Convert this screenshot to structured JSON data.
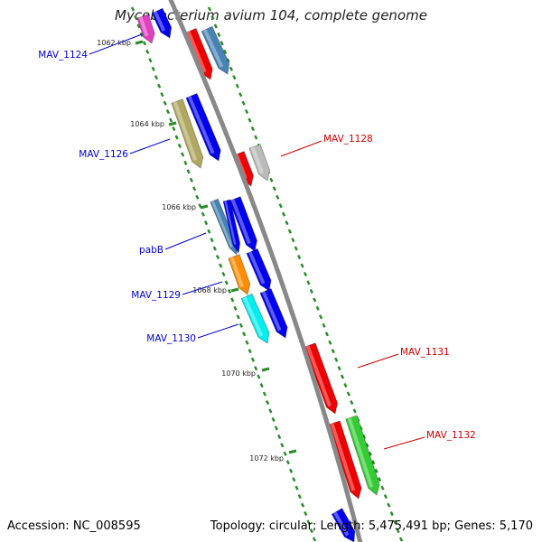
{
  "title": "Mycobacterium avium 104, complete genome",
  "footer": {
    "accession": "Accession: NC_008595",
    "summary": "Topology: circular; Length: 5,475,491 bp; Genes: 5,170"
  },
  "colors": {
    "backbone": "#888888",
    "ticks": "#2a8a2a",
    "label_left": "#0000cc",
    "label_right": "#cc0000"
  },
  "ticks": [
    {
      "label": "1062 kbp"
    },
    {
      "label": "1064 kbp"
    },
    {
      "label": "1066 kbp"
    },
    {
      "label": "1068 kbp"
    },
    {
      "label": "1070 kbp"
    },
    {
      "label": "1072 kbp"
    }
  ],
  "gene_labels": [
    {
      "name": "MAV_1124",
      "strand": "minus"
    },
    {
      "name": "MAV_1126",
      "strand": "minus"
    },
    {
      "name": "pabB",
      "strand": "minus"
    },
    {
      "name": "MAV_1129",
      "strand": "minus"
    },
    {
      "name": "MAV_1130",
      "strand": "minus"
    },
    {
      "name": "MAV_1128",
      "strand": "plus"
    },
    {
      "name": "MAV_1131",
      "strand": "plus"
    },
    {
      "name": "MAV_1132",
      "strand": "plus"
    }
  ]
}
